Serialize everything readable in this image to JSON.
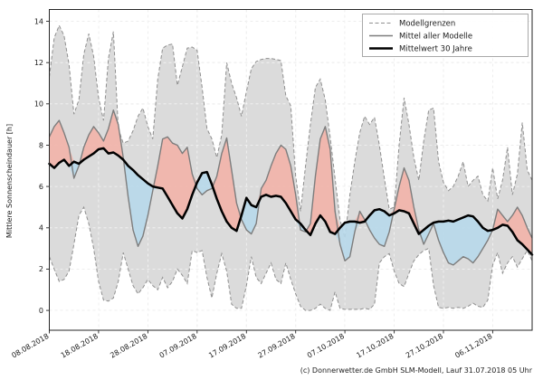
{
  "chart_data": {
    "type": "line",
    "title": "",
    "xlabel": "",
    "ylabel": "Mittlere Sonnenscheindauer [h]",
    "footer": "(c) Donnerwetter.de GmbH SLM-Modell, Lauf 31.07.2018 05 Uhr",
    "grid": true,
    "legend_position": "top-right",
    "ylim": [
      -0.96,
      14.57
    ],
    "yticks": [
      0,
      2,
      4,
      6,
      8,
      10,
      12,
      14
    ],
    "xtick_days": [
      0,
      10,
      20,
      30,
      40,
      50,
      60,
      70,
      80,
      90
    ],
    "xtick_labels": [
      "08.08.2018",
      "18.08.2018",
      "28.08.2018",
      "07.09.2018",
      "17.09.2018",
      "27.09.2018",
      "07.10.2018",
      "17.10.2018",
      "27.10.2018",
      "06.11.2018"
    ],
    "x_total_days": 98,
    "legend": [
      {
        "label": "Modellgrenzen",
        "style": "dashed-gray-thin"
      },
      {
        "label": "Mittel aller Modelle",
        "style": "solid-gray"
      },
      {
        "label": "Mittelwert 30 Jahre",
        "style": "solid-black-thick"
      }
    ],
    "colors": {
      "band_fill": "#d8d8d8",
      "band_edge": "#8f8f8f",
      "above_fill": "#f2b2a8",
      "below_fill": "#b7d8ea",
      "model_mean_line": "#7d7d7d",
      "climate_mean_line": "#000000",
      "grid": "#c6c6c6",
      "spine": "#262626"
    },
    "series": [
      {
        "name": "Modellgrenzen (obere Grenze)",
        "values": [
          11.3,
          13.2,
          13.8,
          13.3,
          11.9,
          9.5,
          10.2,
          12.4,
          13.4,
          12.3,
          10.3,
          9.2,
          12.2,
          13.5,
          8.8,
          8.1,
          8.2,
          8.7,
          9.4,
          9.8,
          8.9,
          8.3,
          11.2,
          12.7,
          12.85,
          12.9,
          10.9,
          11.8,
          12.7,
          12.75,
          12.6,
          10.8,
          8.8,
          8.3,
          7.4,
          8.5,
          12.0,
          11.0,
          10.3,
          9.4,
          10.6,
          11.7,
          12.05,
          12.15,
          12.2,
          12.2,
          12.15,
          12.1,
          10.4,
          9.9,
          6.5,
          4.8,
          7.0,
          9.0,
          10.8,
          11.2,
          10.2,
          8.4,
          6.4,
          4.4,
          3.5,
          5.6,
          7.2,
          8.6,
          9.4,
          9.0,
          9.35,
          8.0,
          6.4,
          4.9,
          5.0,
          8.0,
          10.3,
          9.0,
          7.4,
          6.3,
          8.2,
          9.7,
          9.8,
          7.2,
          6.2,
          5.8,
          6.0,
          6.5,
          7.2,
          6.0,
          6.3,
          6.5,
          5.6,
          5.3,
          6.9,
          5.4,
          6.3,
          7.9,
          5.6,
          6.6,
          9.1,
          6.8,
          6.3
        ]
      },
      {
        "name": "Modellgrenzen (untere Grenze)",
        "values": [
          2.6,
          2.0,
          1.4,
          1.5,
          1.9,
          3.2,
          4.6,
          5.0,
          4.2,
          3.0,
          1.4,
          0.5,
          0.45,
          0.6,
          1.4,
          2.8,
          2.0,
          1.2,
          0.8,
          1.1,
          1.5,
          1.2,
          1.0,
          1.6,
          1.1,
          1.4,
          2.0,
          1.7,
          1.3,
          2.9,
          2.8,
          2.9,
          1.6,
          0.6,
          1.8,
          2.75,
          1.9,
          0.3,
          0.1,
          0.1,
          1.2,
          2.6,
          1.6,
          1.3,
          1.8,
          2.3,
          1.5,
          1.3,
          2.3,
          1.5,
          0.8,
          0.2,
          0.0,
          0.0,
          0.1,
          0.3,
          0.1,
          0.0,
          0.9,
          0.1,
          0.05,
          0.05,
          0.05,
          0.05,
          0.1,
          0.05,
          0.3,
          2.3,
          2.6,
          2.75,
          1.9,
          1.3,
          1.15,
          1.8,
          2.4,
          2.7,
          2.9,
          3.0,
          1.2,
          0.15,
          0.1,
          0.15,
          0.1,
          0.15,
          0.1,
          0.2,
          0.35,
          0.2,
          0.15,
          0.5,
          2.2,
          2.8,
          1.8,
          2.3,
          2.6,
          2.1,
          2.5,
          2.9,
          2.4
        ]
      },
      {
        "name": "Mittel aller Modelle",
        "values": [
          8.4,
          8.9,
          9.2,
          8.6,
          7.9,
          6.4,
          7.0,
          7.9,
          8.5,
          8.9,
          8.6,
          8.2,
          8.8,
          9.7,
          9.0,
          7.4,
          5.5,
          3.9,
          3.1,
          3.6,
          4.6,
          5.8,
          7.0,
          8.3,
          8.4,
          8.1,
          8.0,
          7.6,
          7.9,
          6.6,
          5.9,
          5.6,
          5.8,
          5.9,
          6.5,
          7.6,
          8.35,
          6.8,
          5.2,
          4.4,
          3.9,
          3.7,
          4.2,
          5.9,
          6.3,
          7.0,
          7.6,
          8.0,
          7.8,
          7.0,
          5.6,
          3.9,
          3.8,
          4.2,
          6.5,
          8.3,
          8.9,
          7.8,
          4.8,
          3.2,
          2.4,
          2.6,
          3.8,
          4.8,
          4.4,
          3.9,
          3.5,
          3.2,
          3.1,
          3.8,
          4.9,
          6.0,
          6.9,
          6.3,
          5.0,
          3.9,
          3.2,
          3.7,
          4.2,
          3.4,
          2.8,
          2.3,
          2.2,
          2.4,
          2.6,
          2.5,
          2.3,
          2.6,
          3.0,
          3.4,
          3.9,
          4.9,
          4.6,
          4.3,
          4.6,
          5.0,
          4.6,
          4.0,
          3.5
        ]
      },
      {
        "name": "Mittelwert 30 Jahre",
        "values": [
          7.1,
          6.9,
          7.15,
          7.3,
          7.0,
          7.2,
          7.1,
          7.3,
          7.45,
          7.6,
          7.8,
          7.85,
          7.6,
          7.65,
          7.5,
          7.3,
          7.0,
          6.8,
          6.55,
          6.35,
          6.15,
          6.0,
          5.95,
          5.9,
          5.5,
          5.1,
          4.7,
          4.45,
          4.9,
          5.6,
          6.2,
          6.65,
          6.7,
          6.1,
          5.4,
          4.8,
          4.3,
          4.0,
          3.85,
          4.6,
          5.45,
          5.1,
          5.0,
          5.5,
          5.6,
          5.5,
          5.55,
          5.5,
          5.2,
          4.8,
          4.4,
          4.2,
          3.9,
          3.65,
          4.2,
          4.6,
          4.3,
          3.8,
          3.7,
          4.0,
          4.25,
          4.3,
          4.3,
          4.25,
          4.3,
          4.6,
          4.85,
          4.9,
          4.8,
          4.6,
          4.7,
          4.85,
          4.8,
          4.7,
          4.2,
          3.7,
          3.9,
          4.1,
          4.25,
          4.3,
          4.3,
          4.35,
          4.3,
          4.4,
          4.5,
          4.6,
          4.55,
          4.3,
          4.0,
          3.85,
          3.9,
          4.0,
          4.15,
          4.1,
          3.8,
          3.4,
          3.2,
          2.95,
          2.7
        ]
      }
    ]
  }
}
